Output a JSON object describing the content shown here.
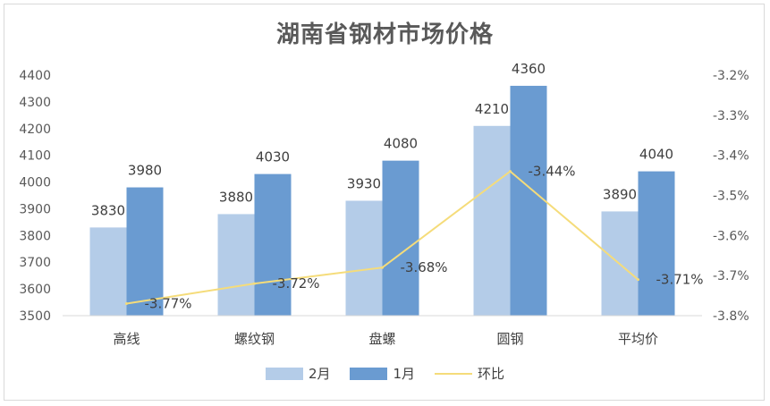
{
  "chart_data": {
    "type": "bar",
    "title": "湖南省钢材市场价格",
    "categories": [
      "高线",
      "螺纹钢",
      "盘螺",
      "圆钢",
      "平均价"
    ],
    "series": [
      {
        "name": "2月",
        "type": "bar",
        "axis": "left",
        "color": "#b4cce8",
        "values": [
          3830,
          3880,
          3930,
          4210,
          3890
        ],
        "labels": [
          "3830",
          "3880",
          "3930",
          "4210",
          "3890"
        ]
      },
      {
        "name": "1月",
        "type": "bar",
        "axis": "left",
        "color": "#6a9bd1",
        "values": [
          3980,
          4030,
          4080,
          4360,
          4040
        ],
        "labels": [
          "3980",
          "4030",
          "4080",
          "4360",
          "4040"
        ]
      },
      {
        "name": "环比",
        "type": "line",
        "axis": "right",
        "color": "#f5dc7a",
        "values": [
          -3.77,
          -3.72,
          -3.68,
          -3.44,
          -3.71
        ],
        "labels": [
          "-3.77%",
          "-3.72%",
          "-3.68%",
          "-3.44%",
          "-3.71%"
        ]
      }
    ],
    "ylim": [
      3500,
      4400
    ],
    "yticks": [
      "3500",
      "3600",
      "3700",
      "3800",
      "3900",
      "4000",
      "4100",
      "4200",
      "4300",
      "4400"
    ],
    "y2lim": [
      -3.8,
      -3.2
    ],
    "y2ticks": [
      "-3.2%",
      "-3.3%",
      "-3.4%",
      "-3.5%",
      "-3.6%",
      "-3.7%",
      "-3.8%"
    ],
    "grid": false,
    "legend_position": "bottom"
  }
}
